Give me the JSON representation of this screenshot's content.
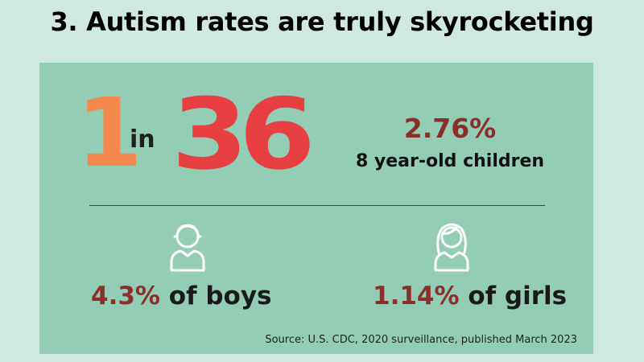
{
  "title": "3. Autism rates are truly skyrocketing",
  "headline": {
    "numerator": "1",
    "connector": "in",
    "denominator": "36"
  },
  "overall": {
    "percent": "2.76%",
    "description": "8 year-old children"
  },
  "boys": {
    "icon": "boy-icon",
    "percent": "4.3%",
    "label": " of boys"
  },
  "girls": {
    "icon": "girl-icon",
    "percent": "1.14%",
    "label": " of girls"
  },
  "source": "Source: U.S. CDC, 2020 surveillance, published March 2023",
  "colors": {
    "slide_background": "#cfe9e0",
    "panel_background": "#93cdb5",
    "one_orange": "#f4894e",
    "thirty_six_red": "#e84040",
    "percent_maroon": "#8b2f2a"
  }
}
